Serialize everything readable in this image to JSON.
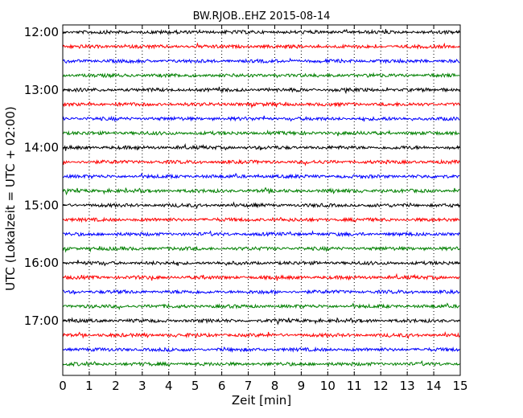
{
  "chart_data": {
    "type": "line",
    "title": "BW.RJOB..EHZ 2015-08-14",
    "xlabel": "Zeit  [min]",
    "ylabel": "UTC (Lokalzeit = UTC + 02:00)",
    "xlim": [
      0,
      15
    ],
    "x_ticks": [
      "0",
      "1",
      "2",
      "3",
      "4",
      "5",
      "6",
      "7",
      "8",
      "9",
      "10",
      "11",
      "12",
      "13",
      "14",
      "15"
    ],
    "y_ticks": [
      "12:00",
      "13:00",
      "14:00",
      "15:00",
      "16:00",
      "17:00"
    ],
    "grid": "vertical dotted",
    "trace_colors": [
      "#000000",
      "#ff0000",
      "#0000ff",
      "#008000"
    ],
    "traces": [
      {
        "start": "12:00",
        "color": "#000000"
      },
      {
        "start": "12:15",
        "color": "#ff0000"
      },
      {
        "start": "12:30",
        "color": "#0000ff"
      },
      {
        "start": "12:45",
        "color": "#008000"
      },
      {
        "start": "13:00",
        "color": "#000000"
      },
      {
        "start": "13:15",
        "color": "#ff0000"
      },
      {
        "start": "13:30",
        "color": "#0000ff"
      },
      {
        "start": "13:45",
        "color": "#008000"
      },
      {
        "start": "14:00",
        "color": "#000000"
      },
      {
        "start": "14:15",
        "color": "#ff0000"
      },
      {
        "start": "14:30",
        "color": "#0000ff"
      },
      {
        "start": "14:45",
        "color": "#008000"
      },
      {
        "start": "15:00",
        "color": "#000000"
      },
      {
        "start": "15:15",
        "color": "#ff0000"
      },
      {
        "start": "15:30",
        "color": "#0000ff"
      },
      {
        "start": "15:45",
        "color": "#008000"
      },
      {
        "start": "16:00",
        "color": "#000000"
      },
      {
        "start": "16:15",
        "color": "#ff0000"
      },
      {
        "start": "16:30",
        "color": "#0000ff"
      },
      {
        "start": "16:45",
        "color": "#008000"
      },
      {
        "start": "17:00",
        "color": "#000000"
      },
      {
        "start": "17:15",
        "color": "#ff0000"
      },
      {
        "start": "17:30",
        "color": "#0000ff"
      },
      {
        "start": "17:45",
        "color": "#008000"
      }
    ]
  }
}
